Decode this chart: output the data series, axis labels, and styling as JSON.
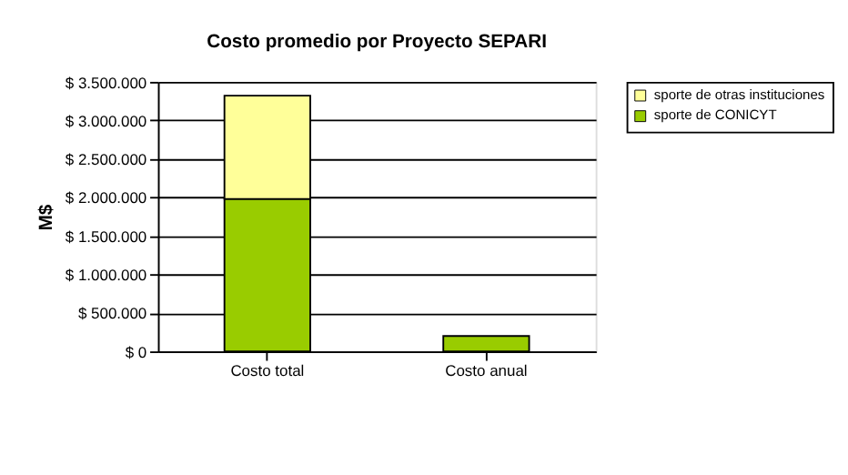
{
  "chart_data": {
    "type": "bar",
    "title": "Costo promedio por Proyecto SEPARI",
    "ylabel": "M$",
    "categories": [
      "Costo total",
      "Costo anual"
    ],
    "stacked": true,
    "series": [
      {
        "name": "sporte de CONICYT",
        "color": "#99cc00",
        "values": [
          1980000,
          200000
        ]
      },
      {
        "name": "sporte de otras instituciones",
        "color": "#ffff99",
        "values": [
          1340000,
          null
        ]
      }
    ],
    "ylim": [
      0,
      3500000
    ],
    "yticks": [
      {
        "value": 0,
        "label": "$ 0"
      },
      {
        "value": 500000,
        "label": "$ 500.000"
      },
      {
        "value": 1000000,
        "label": "$ 1.000.000"
      },
      {
        "value": 1500000,
        "label": "$ 1.500.000"
      },
      {
        "value": 2000000,
        "label": "$ 2.000.000"
      },
      {
        "value": 2500000,
        "label": "$ 2.500.000"
      },
      {
        "value": 3000000,
        "label": "$ 3.000.000"
      },
      {
        "value": 3500000,
        "label": "$ 3.500.000"
      }
    ],
    "grid": "y",
    "legend": "right"
  }
}
